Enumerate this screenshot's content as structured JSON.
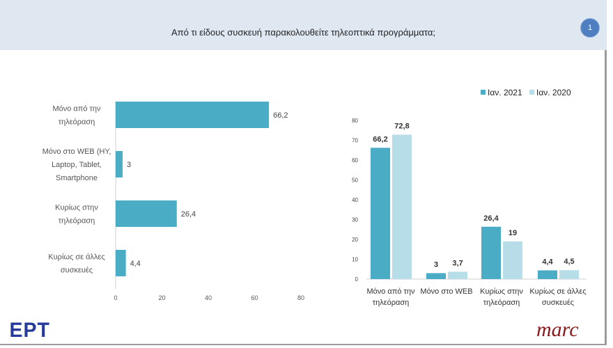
{
  "header": {
    "title": "Από τι είδους συσκευή παρακολουθείτε  τηλεοπτικά προγράμματα;",
    "page_number": "1"
  },
  "logos": {
    "left": "ΕΡΤ",
    "right": "marc"
  },
  "colors": {
    "dark": "#4bacc6",
    "light": "#b7dde8"
  },
  "chart_data": [
    {
      "type": "bar",
      "orientation": "horizontal",
      "categories": [
        [
          "Μόνο από την",
          "τηλεόραση"
        ],
        [
          "Μόνο στο WEB (HY,",
          "Laptop, Tablet,",
          "Smartphone"
        ],
        [
          "Κυρίως στην",
          "τηλεόραση"
        ],
        [
          "Κυρίως σε άλλες",
          "συσκευές"
        ]
      ],
      "values": [
        66.2,
        3,
        26.4,
        4.4
      ],
      "labels": [
        "66,2",
        "3",
        "26,4",
        "4,4"
      ],
      "xlim": [
        0,
        80
      ],
      "xticks": [
        "0",
        "20",
        "40",
        "60",
        "80"
      ],
      "grid": false
    },
    {
      "type": "bar",
      "orientation": "vertical",
      "categories": [
        [
          "Μόνο από την",
          "τηλεόραση"
        ],
        [
          "Μόνο στο WEB"
        ],
        [
          "Κυρίως στην",
          "τηλεόραση"
        ],
        [
          "Κυρίως σε άλλες",
          "συσκευές"
        ]
      ],
      "series": [
        {
          "name": "Ιαν. 2021",
          "values": [
            66.2,
            3,
            26.4,
            4.4
          ],
          "labels": [
            "66,2",
            "3",
            "26,4",
            "4,4"
          ]
        },
        {
          "name": "Ιαν. 2020",
          "values": [
            72.8,
            3.7,
            19,
            4.5
          ],
          "labels": [
            "72,8",
            "3,7",
            "19",
            "4,5"
          ]
        }
      ],
      "ylim": [
        0,
        80
      ],
      "yticks": [
        "0",
        "10",
        "20",
        "30",
        "40",
        "50",
        "60",
        "70",
        "80"
      ],
      "legend": "top-right",
      "grid": false
    }
  ]
}
